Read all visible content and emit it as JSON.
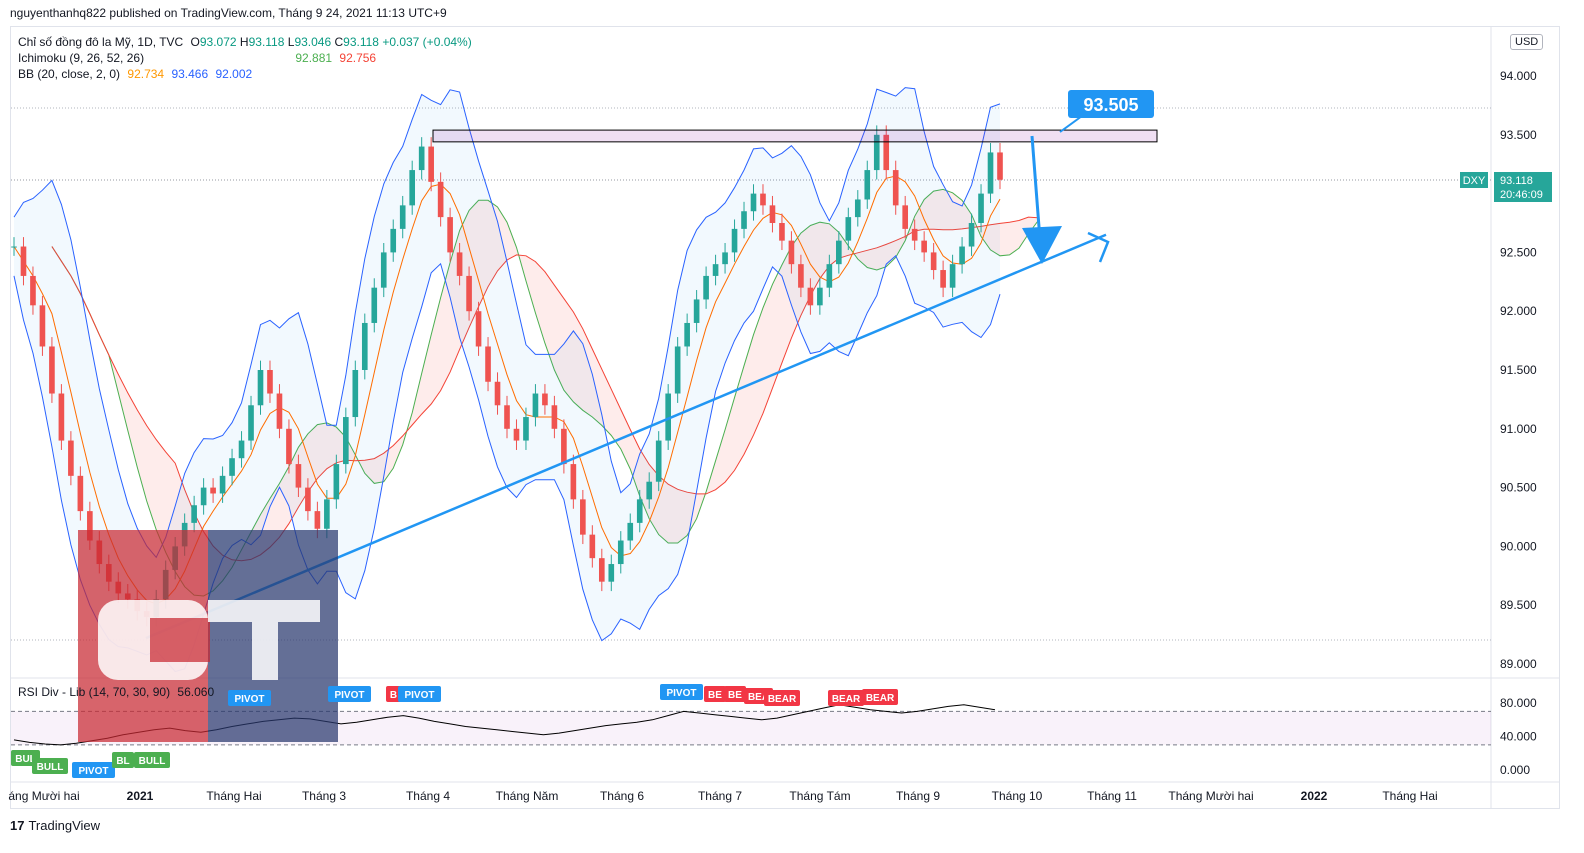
{
  "header": {
    "publisher_line": "nguyenthanhq822 published on TradingView.com, Tháng 9 24, 2021 11:13 UTC+9"
  },
  "legend": {
    "symbol_line": {
      "name": "Chỉ số đồng đô la Mỹ, 1D, TVC",
      "o_label": "O",
      "o": "93.072",
      "h_label": "H",
      "h": "93.118",
      "l_label": "L",
      "l": "93.046",
      "c_label": "C",
      "c": "93.118",
      "change": "+0.037 (+0.04%)"
    },
    "ichimoku": {
      "name": "Ichimoku (9, 26, 52, 26)",
      "v1": "92.881",
      "v2": "92.756"
    },
    "bb": {
      "name": "BB (20, close, 2, 0)",
      "v1": "92.734",
      "v2": "93.466",
      "v3": "92.002"
    },
    "rsi": {
      "name": "RSI Div - Lib (14, 70, 30, 90)",
      "value": "56.060"
    }
  },
  "price_axis": {
    "currency_button": "USD",
    "ticks": [
      "94.000",
      "93.500",
      "93.000",
      "92.500",
      "92.000",
      "91.500",
      "91.000",
      "90.500",
      "90.000",
      "89.500",
      "89.000"
    ],
    "last_price_tag": {
      "symbol": "DXY",
      "price": "93.118",
      "countdown": "20:46:09"
    }
  },
  "rsi_axis": {
    "ticks": [
      "80.000",
      "40.000",
      "0.000"
    ]
  },
  "time_axis": {
    "labels": [
      "áng Mười hai",
      "2021",
      "Tháng Hai",
      "Tháng 3",
      "Tháng 4",
      "Tháng Năm",
      "Tháng 6",
      "Tháng 7",
      "Tháng Tám",
      "Tháng 9",
      "Tháng 10",
      "Tháng 11",
      "Tháng Mười hai",
      "2022",
      "Tháng Hai"
    ]
  },
  "annotations": {
    "target_label": "93.505"
  },
  "rsi_signals": {
    "pivot": "PIVOT",
    "bear": "BEAR",
    "bull": "BULL",
    "be": "BE",
    "bea": "BEA",
    "bl": "BL",
    "b": "B",
    "bul": "BUL"
  },
  "logo": {
    "letters": "CT"
  },
  "footer": {
    "brand": "TradingView",
    "mark": "17"
  },
  "colors": {
    "up": "#26a69a",
    "down": "#ef5350",
    "bb": "#2962ff",
    "trend": "#2196f3",
    "kumo_red": "#f44336",
    "kumo_green": "#4caf50",
    "label_blue": "#2196f3",
    "pivot_blue": "#2196f3",
    "bear_red": "#f23645",
    "bull_green": "#4caf50"
  },
  "chart_data": {
    "type": "candlestick",
    "ylim": [
      88.95,
      94.05
    ],
    "resistance_zone": [
      93.44,
      93.54
    ],
    "target": 93.505,
    "last_close": 93.118,
    "closes": [
      92.55,
      92.3,
      92.05,
      91.7,
      91.3,
      90.9,
      90.6,
      90.3,
      90.05,
      89.85,
      89.7,
      89.6,
      89.55,
      89.45,
      89.4,
      89.55,
      89.8,
      90.0,
      90.2,
      90.35,
      90.5,
      90.45,
      90.6,
      90.75,
      90.9,
      91.2,
      91.5,
      91.3,
      91.0,
      90.7,
      90.5,
      90.3,
      90.15,
      90.4,
      90.7,
      91.1,
      91.5,
      91.9,
      92.2,
      92.5,
      92.7,
      92.9,
      93.2,
      93.4,
      93.1,
      92.8,
      92.5,
      92.3,
      92.0,
      91.7,
      91.4,
      91.2,
      91.0,
      90.9,
      91.1,
      91.3,
      91.2,
      91.0,
      90.7,
      90.4,
      90.1,
      89.9,
      89.7,
      89.85,
      90.05,
      90.2,
      90.4,
      90.55,
      90.9,
      91.3,
      91.7,
      91.9,
      92.1,
      92.3,
      92.4,
      92.5,
      92.7,
      92.85,
      93.0,
      92.9,
      92.75,
      92.6,
      92.4,
      92.2,
      92.05,
      92.2,
      92.4,
      92.6,
      92.8,
      92.95,
      93.2,
      93.5,
      93.2,
      92.9,
      92.7,
      92.6,
      92.5,
      92.35,
      92.2,
      92.4,
      92.55,
      92.75,
      93.0,
      93.35,
      93.118
    ],
    "rsi": [
      36,
      33,
      31,
      30,
      32,
      35,
      38,
      42,
      45,
      48,
      50,
      47,
      45,
      48,
      52,
      55,
      58,
      60,
      62,
      61,
      58,
      55,
      57,
      60,
      63,
      65,
      62,
      58,
      55,
      52,
      50,
      48,
      46,
      44,
      42,
      44,
      47,
      50,
      53,
      55,
      57,
      60,
      65,
      70,
      68,
      66,
      64,
      62,
      60,
      62,
      66,
      70,
      74,
      78,
      75,
      72,
      70,
      68,
      70,
      73,
      76,
      78,
      75,
      72
    ],
    "rsi_levels": {
      "upper": 70,
      "lower": 30
    },
    "trendline": {
      "from": [
        0.13,
        89.22
      ],
      "to": [
        0.74,
        92.65
      ]
    }
  }
}
